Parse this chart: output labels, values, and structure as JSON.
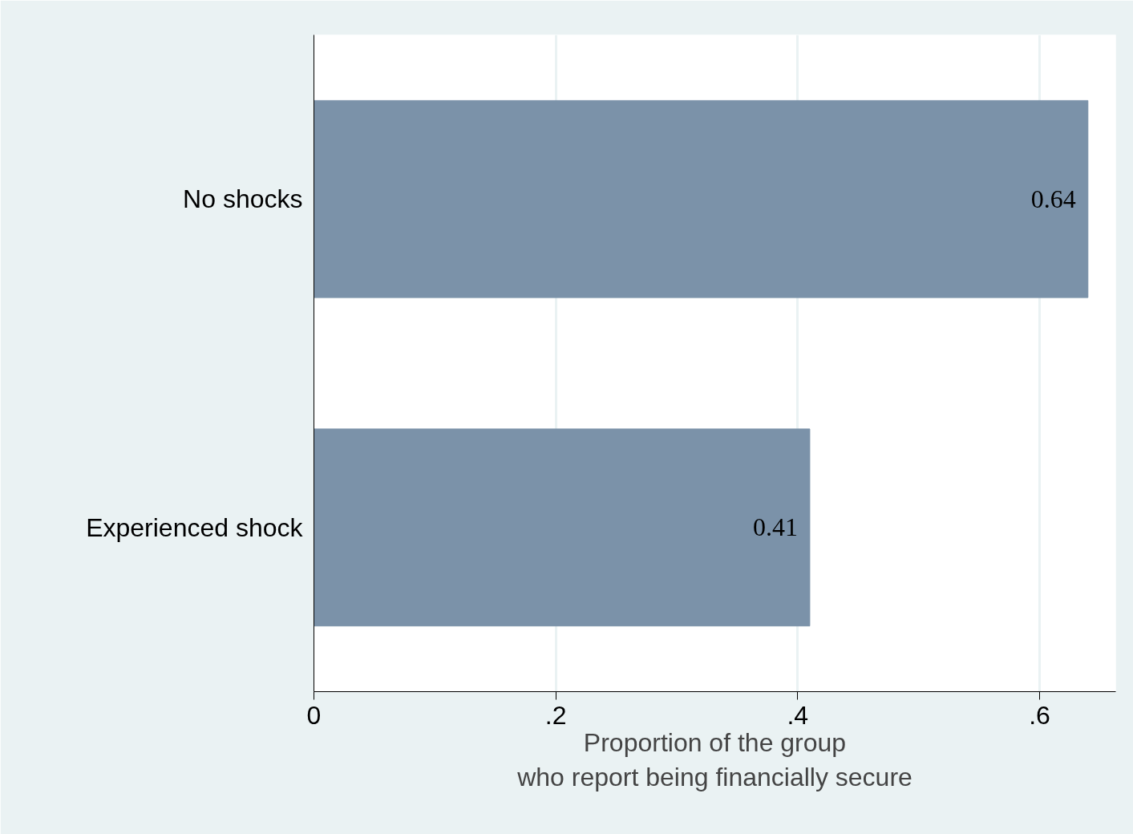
{
  "chart_data": {
    "type": "bar",
    "orientation": "horizontal",
    "categories": [
      "No shocks",
      "Experienced shock"
    ],
    "values": [
      0.64,
      0.41
    ],
    "color": "#7b92a9",
    "xlabel": "Proportion of the group\nwho report being financially secure",
    "xlim": [
      0,
      0.663
    ],
    "xticks": [
      0,
      {
        "value": 0.2,
        "label": ".2"
      },
      {
        "value": 0.4,
        "label": ".4"
      },
      {
        "value": 0.6,
        "label": ".6"
      }
    ],
    "grid": "x",
    "data_labels": true
  }
}
